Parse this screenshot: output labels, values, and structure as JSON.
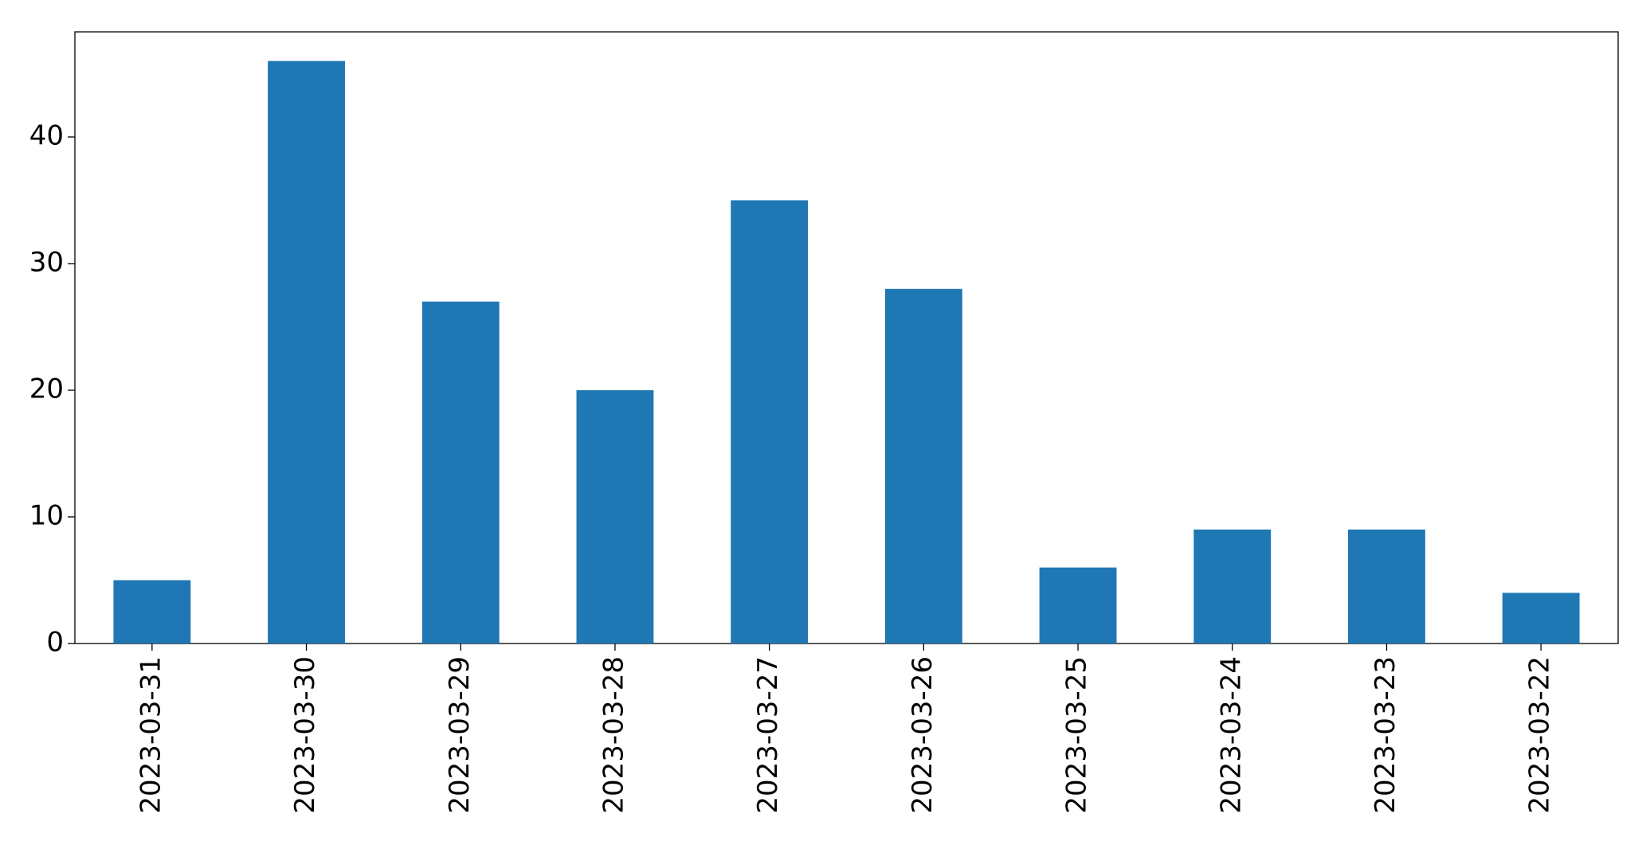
{
  "chart_data": {
    "type": "bar",
    "categories": [
      "2023-03-31",
      "2023-03-30",
      "2023-03-29",
      "2023-03-28",
      "2023-03-27",
      "2023-03-26",
      "2023-03-25",
      "2023-03-24",
      "2023-03-23",
      "2023-03-22"
    ],
    "values": [
      5,
      46,
      27,
      20,
      35,
      28,
      6,
      9,
      9,
      4
    ],
    "color": "#1f77b4",
    "ylim": [
      0,
      48.3
    ],
    "yticks": [
      0,
      10,
      20,
      30,
      40
    ],
    "grid": false
  }
}
